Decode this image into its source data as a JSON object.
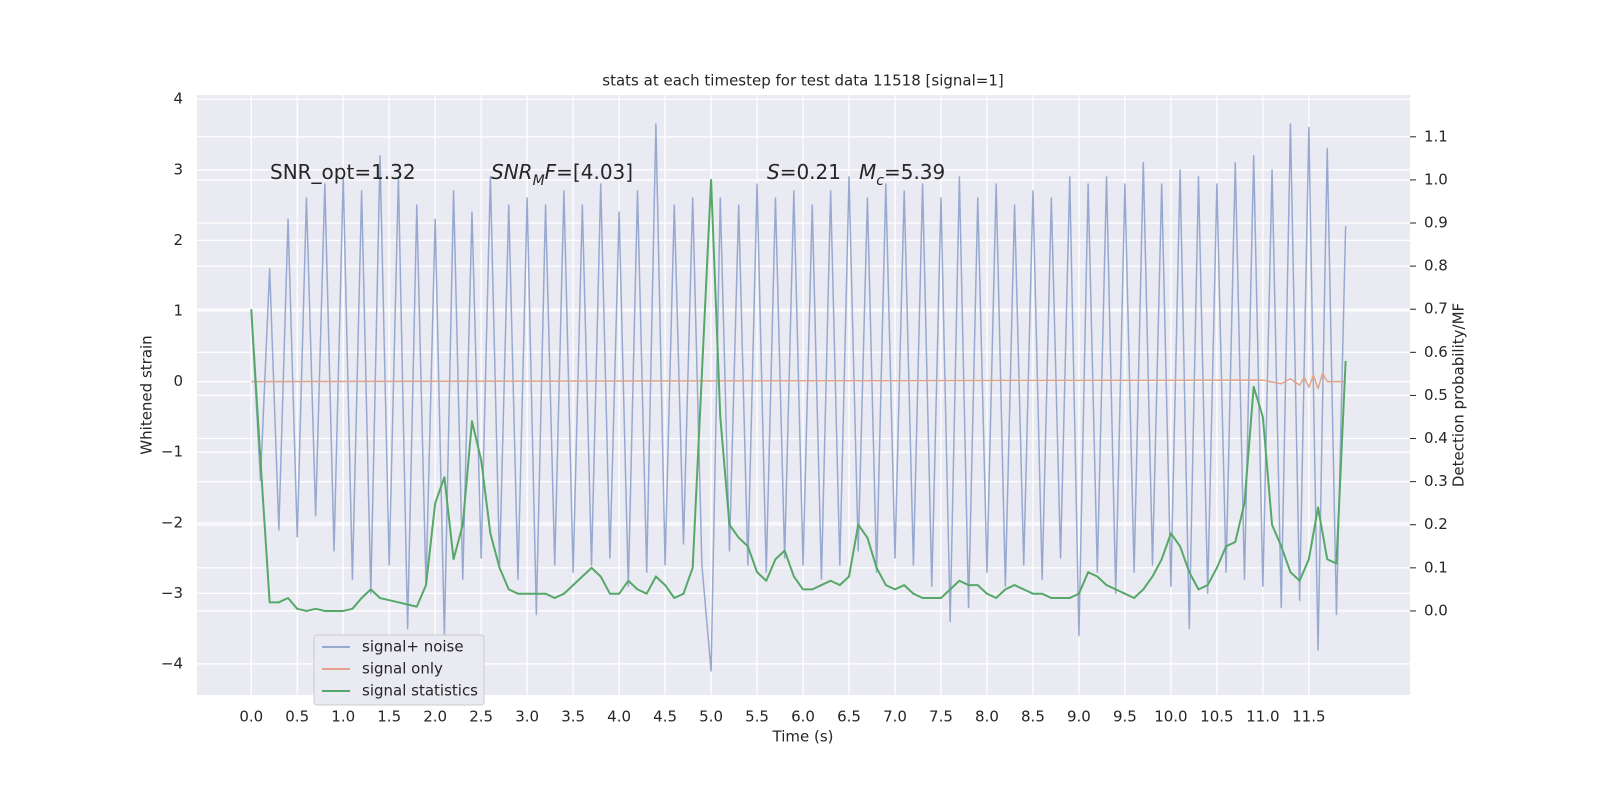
{
  "chart_data": {
    "type": "line",
    "title": "stats at each timestep for test data 11518 [signal=1]",
    "x_label": "Time (s)",
    "y_label": "Whitened strain",
    "y2_label": "Detection probability/MF",
    "x": [
      0.0,
      0.1,
      0.2,
      0.3,
      0.4,
      0.5,
      0.6,
      0.7,
      0.8,
      0.9,
      1.0,
      1.1,
      1.2,
      1.3,
      1.4,
      1.5,
      1.6,
      1.7,
      1.8,
      1.9,
      2.0,
      2.1,
      2.2,
      2.3,
      2.4,
      2.5,
      2.6,
      2.7,
      2.8,
      2.9,
      3.0,
      3.1,
      3.2,
      3.3,
      3.4,
      3.5,
      3.6,
      3.7,
      3.8,
      3.9,
      4.0,
      4.1,
      4.2,
      4.3,
      4.4,
      4.5,
      4.6,
      4.7,
      4.8,
      4.9,
      5.0,
      5.1,
      5.2,
      5.3,
      5.4,
      5.5,
      5.6,
      5.7,
      5.8,
      5.9,
      6.0,
      6.1,
      6.2,
      6.3,
      6.4,
      6.5,
      6.6,
      6.7,
      6.8,
      6.9,
      7.0,
      7.1,
      7.2,
      7.3,
      7.4,
      7.5,
      7.6,
      7.7,
      7.8,
      7.9,
      8.0,
      8.1,
      8.2,
      8.3,
      8.4,
      8.5,
      8.6,
      8.7,
      8.8,
      8.9,
      9.0,
      9.1,
      9.2,
      9.3,
      9.4,
      9.5,
      9.6,
      9.7,
      9.8,
      9.9,
      10.0,
      10.1,
      10.2,
      10.3,
      10.4,
      10.5,
      10.6,
      10.7,
      10.8,
      10.9,
      11.0,
      11.1,
      11.2,
      11.3,
      11.4,
      11.5,
      11.6,
      11.7,
      11.8,
      11.9
    ],
    "series": [
      {
        "name": "signal+ noise",
        "color": "#98a9d0",
        "values": [
          1.0,
          -1.4,
          1.6,
          -2.1,
          2.3,
          -2.2,
          2.6,
          -1.9,
          2.8,
          -2.4,
          2.9,
          -2.8,
          2.7,
          -3.0,
          3.2,
          -2.6,
          2.9,
          -3.5,
          2.5,
          -2.9,
          2.3,
          -3.6,
          2.7,
          -2.8,
          2.4,
          -2.5,
          2.9,
          -2.6,
          2.5,
          -2.8,
          2.6,
          -3.3,
          2.5,
          -2.6,
          2.7,
          -2.7,
          2.5,
          -2.6,
          2.8,
          -2.5,
          2.4,
          -2.9,
          2.7,
          -2.7,
          3.65,
          -2.6,
          2.5,
          -2.3,
          2.6,
          -2.6,
          -4.1,
          2.6,
          -2.4,
          2.5,
          -2.6,
          2.8,
          -2.7,
          2.6,
          -2.5,
          2.7,
          -2.6,
          2.5,
          -2.8,
          2.7,
          -2.6,
          2.9,
          -2.4,
          2.6,
          -2.7,
          2.8,
          -2.5,
          2.7,
          -2.6,
          2.8,
          -2.9,
          2.6,
          -3.4,
          2.9,
          -3.2,
          2.6,
          -2.7,
          2.8,
          -2.9,
          2.5,
          -2.6,
          2.7,
          -2.8,
          2.6,
          -2.5,
          2.9,
          -3.6,
          2.8,
          -2.7,
          2.9,
          -3.0,
          2.8,
          -2.7,
          3.1,
          -2.6,
          2.8,
          -2.9,
          3.0,
          -3.5,
          2.9,
          -3.0,
          2.8,
          -2.7,
          3.1,
          -2.8,
          3.2,
          -2.9,
          3.0,
          -3.2,
          3.65,
          -3.1,
          3.6,
          -3.8,
          3.3,
          -3.3,
          2.2
        ]
      },
      {
        "name": "signal only",
        "color": "#e0a58a",
        "x": [
          0.0,
          11.0,
          11.2,
          11.3,
          11.4,
          11.45,
          11.5,
          11.55,
          11.6,
          11.65,
          11.7,
          11.9
        ],
        "values": [
          0,
          0.02,
          -0.03,
          0.04,
          -0.05,
          0.06,
          -0.08,
          0.09,
          -0.1,
          0.12,
          0,
          0
        ]
      },
      {
        "name": "signal statistics",
        "color": "#55a868",
        "axis": "y2",
        "values": [
          0.7,
          0.35,
          0.02,
          0.02,
          0.03,
          0.005,
          0.0,
          0.005,
          0.0,
          0.0,
          0.0,
          0.005,
          0.03,
          0.05,
          0.03,
          0.025,
          0.02,
          0.015,
          0.01,
          0.06,
          0.25,
          0.31,
          0.12,
          0.2,
          0.44,
          0.35,
          0.18,
          0.1,
          0.05,
          0.04,
          0.04,
          0.04,
          0.04,
          0.03,
          0.04,
          0.06,
          0.08,
          0.1,
          0.08,
          0.04,
          0.04,
          0.07,
          0.05,
          0.04,
          0.08,
          0.06,
          0.03,
          0.04,
          0.1,
          0.55,
          1.0,
          0.45,
          0.2,
          0.17,
          0.15,
          0.09,
          0.07,
          0.12,
          0.14,
          0.08,
          0.05,
          0.05,
          0.06,
          0.07,
          0.06,
          0.08,
          0.2,
          0.17,
          0.1,
          0.06,
          0.05,
          0.06,
          0.04,
          0.03,
          0.03,
          0.03,
          0.05,
          0.07,
          0.06,
          0.06,
          0.04,
          0.03,
          0.05,
          0.06,
          0.05,
          0.04,
          0.04,
          0.03,
          0.03,
          0.03,
          0.04,
          0.09,
          0.08,
          0.06,
          0.05,
          0.04,
          0.03,
          0.05,
          0.08,
          0.12,
          0.18,
          0.15,
          0.09,
          0.05,
          0.06,
          0.1,
          0.15,
          0.16,
          0.25,
          0.52,
          0.45,
          0.2,
          0.15,
          0.09,
          0.07,
          0.12,
          0.24,
          0.12,
          0.11,
          0.58
        ]
      }
    ],
    "xlim": [
      -0.59,
      12.6
    ],
    "ylim": [
      -4.44,
      4.06
    ],
    "y2lim": [
      -0.195,
      1.197
    ],
    "xticks": [
      {
        "value": 0,
        "label": "0.0"
      },
      0.5,
      {
        "value": 1,
        "label": "1.0"
      },
      1.5,
      {
        "value": 2,
        "label": "2.0"
      },
      2.5,
      {
        "value": 3,
        "label": "3.0"
      },
      3.5,
      {
        "value": 4,
        "label": "4.0"
      },
      4.5,
      {
        "value": 5,
        "label": "5.0"
      },
      5.5,
      {
        "value": 6,
        "label": "6.0"
      },
      6.5,
      {
        "value": 7,
        "label": "7.0"
      },
      7.5,
      {
        "value": 8,
        "label": "8.0"
      },
      8.5,
      {
        "value": 9,
        "label": "9.0"
      },
      9.5,
      {
        "value": 10,
        "label": "10.0"
      },
      10.5,
      {
        "value": 11,
        "label": "11.0"
      },
      11.5
    ],
    "yticks": [
      {
        "value": -4,
        "label": "−4"
      },
      {
        "value": -3,
        "label": "−3"
      },
      {
        "value": -2,
        "label": "−2"
      },
      {
        "value": -1,
        "label": "−1"
      },
      0,
      1,
      2,
      3,
      4
    ],
    "y2ticks": [
      {
        "value": 0,
        "label": "0.0"
      },
      0.1,
      0.2,
      0.3,
      0.4,
      0.5,
      0.6,
      0.7,
      0.8,
      0.9,
      {
        "value": 1,
        "label": "1.0"
      },
      1.1
    ],
    "grid": true,
    "legend": "lower left",
    "annotations": [
      {
        "parts": [
          {
            "text": "SNR_opt=1.32"
          }
        ]
      },
      {
        "parts": [
          {
            "text": "SNR",
            "italic": true
          },
          {
            "text": "M",
            "italic": true,
            "sub": true
          },
          {
            "text": "F",
            "italic": true
          },
          {
            "text": "=[4.03]"
          }
        ]
      },
      {
        "parts": [
          {
            "text": "S",
            "italic": true
          },
          {
            "text": "=0.21"
          }
        ]
      },
      {
        "parts": [
          {
            "text": "M",
            "italic": true
          },
          {
            "text": "c",
            "italic": true,
            "sub": true
          },
          {
            "text": "=5.39"
          }
        ]
      }
    ]
  }
}
